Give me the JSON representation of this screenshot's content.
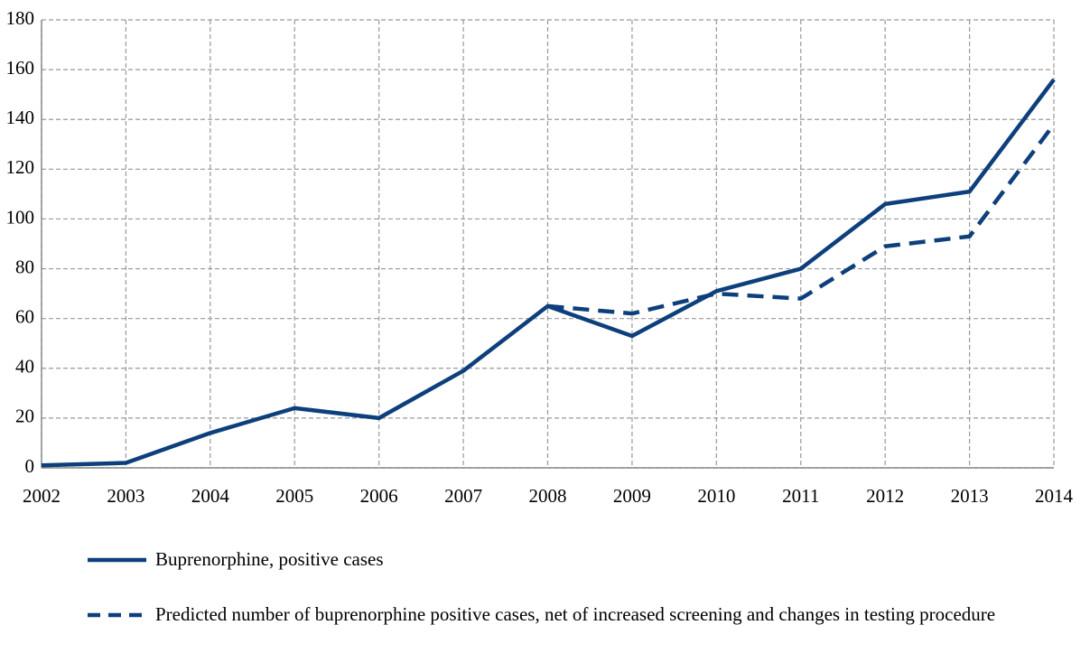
{
  "chart_data": {
    "type": "line",
    "x": [
      2002,
      2003,
      2004,
      2005,
      2006,
      2007,
      2008,
      2009,
      2010,
      2011,
      2012,
      2013,
      2014
    ],
    "xlim": [
      2002,
      2014
    ],
    "xticks": [
      2002,
      2003,
      2004,
      2005,
      2006,
      2007,
      2008,
      2009,
      2010,
      2011,
      2012,
      2013,
      2014
    ],
    "ylim": [
      0,
      180
    ],
    "yticks": [
      0,
      20,
      40,
      60,
      80,
      100,
      120,
      140,
      160,
      180
    ],
    "grid": true,
    "legend": "bottom",
    "series": [
      {
        "name": "Buprenorphine, positive cases",
        "color": "#0d3f7c",
        "line_style": "solid",
        "values": [
          1,
          2,
          14,
          24,
          20,
          39,
          65,
          53,
          71,
          80,
          106,
          111,
          156
        ]
      },
      {
        "name": "Predicted number of buprenorphine positive cases, net of  increased screening and changes in testing procedure",
        "color": "#0d3f7c",
        "line_style": "dashed",
        "values": [
          null,
          null,
          null,
          null,
          null,
          null,
          65,
          62,
          70,
          68,
          89,
          93,
          138
        ]
      }
    ]
  }
}
